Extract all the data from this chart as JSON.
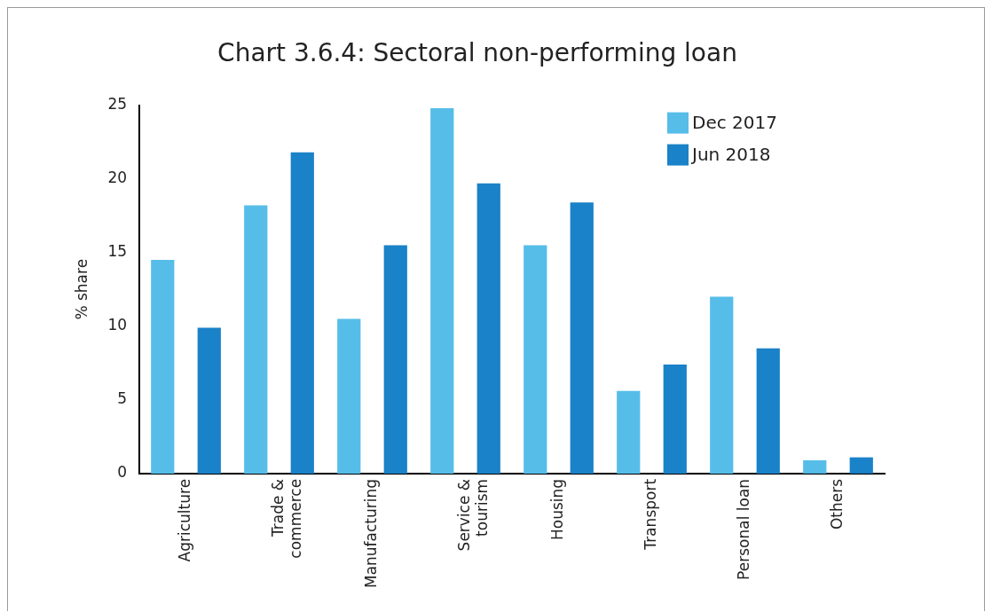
{
  "chart_data": {
    "type": "bar",
    "title": "Chart 3.6.4: Sectoral non-performing loan",
    "ylabel": "% share",
    "categories": [
      "Agriculture",
      "Trade &\ncommerce",
      "Manufacturing",
      "Service &\ntourism",
      "Housing",
      "Transport",
      "Personal loan",
      "Others"
    ],
    "series": [
      {
        "name": "Dec 2017",
        "color": "#56bde9",
        "values": [
          14.5,
          18.2,
          10.5,
          24.8,
          15.5,
          5.6,
          12.0,
          0.9
        ]
      },
      {
        "name": "Jun 2018",
        "color": "#1a82c8",
        "values": [
          9.9,
          21.8,
          15.5,
          19.7,
          18.4,
          7.4,
          8.5,
          1.1
        ]
      }
    ],
    "ylim": [
      0,
      25
    ],
    "yticks": [
      0,
      5,
      10,
      15,
      20,
      25
    ],
    "grid": false,
    "legend": "top right"
  }
}
